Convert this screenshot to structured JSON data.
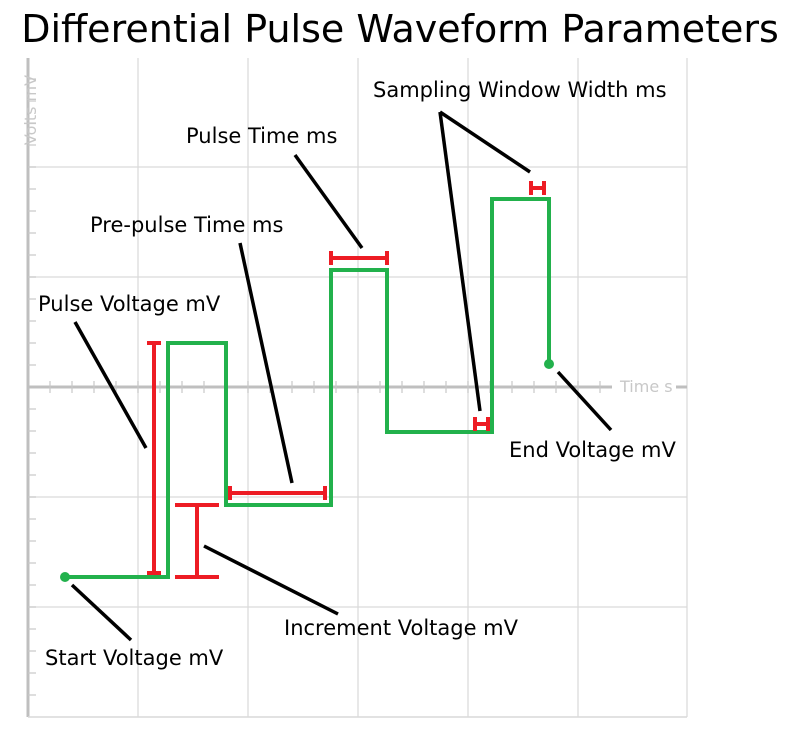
{
  "title": "Differential Pulse Waveform Parameters",
  "axes": {
    "y_label": "Volts mV",
    "x_label": "Time s",
    "grid": true
  },
  "labels": {
    "sampling_window_width": "Sampling Window Width ms",
    "pulse_time": "Pulse Time ms",
    "pre_pulse_time": "Pre-pulse Time ms",
    "pulse_voltage": "Pulse Voltage mV",
    "end_voltage": "End Voltage mV",
    "increment_voltage": "Increment Voltage mV",
    "start_voltage": "Start Voltage mV"
  },
  "colors": {
    "waveform": "#22b14c",
    "marker": "#ed1c24",
    "leader": "#000000",
    "grid": "#d9d9d9",
    "axis": "#bfbfbf"
  }
}
